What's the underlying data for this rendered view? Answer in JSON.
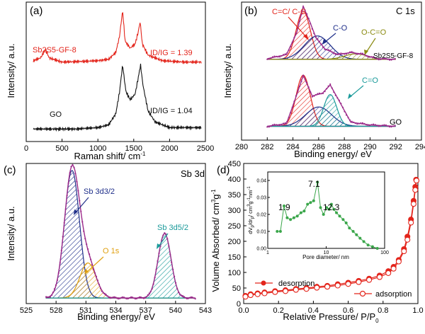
{
  "chart_data": [
    {
      "panel": "(a)",
      "type": "line",
      "xlabel": "Raman shift/ cm",
      "xlabel_sup": "-1",
      "ylabel": "Intensity/ a.u.",
      "xlim": [
        0,
        2500
      ],
      "xticks": [
        "0",
        "500",
        "1000",
        "1500",
        "2000",
        "2500"
      ],
      "series": [
        {
          "name": "Sb2S5-GF-8",
          "color": "#e3241b",
          "ratio": "ID/IG = 1.39",
          "points": [
            [
              100,
              0.58
            ],
            [
              200,
              0.6
            ],
            [
              270,
              0.66
            ],
            [
              320,
              0.6
            ],
            [
              500,
              0.57
            ],
            [
              800,
              0.575
            ],
            [
              1000,
              0.58
            ],
            [
              1150,
              0.59
            ],
            [
              1250,
              0.64
            ],
            [
              1300,
              0.75
            ],
            [
              1345,
              0.94
            ],
            [
              1380,
              0.72
            ],
            [
              1450,
              0.67
            ],
            [
              1520,
              0.7
            ],
            [
              1560,
              0.78
            ],
            [
              1590,
              0.86
            ],
            [
              1620,
              0.7
            ],
            [
              1700,
              0.62
            ],
            [
              1900,
              0.58
            ],
            [
              2200,
              0.57
            ],
            [
              2450,
              0.57
            ]
          ]
        },
        {
          "name": "GO",
          "color": "#111111",
          "ratio": "ID/IG = 1.04",
          "points": [
            [
              100,
              0.09
            ],
            [
              400,
              0.09
            ],
            [
              700,
              0.09
            ],
            [
              1000,
              0.1
            ],
            [
              1150,
              0.12
            ],
            [
              1250,
              0.2
            ],
            [
              1300,
              0.35
            ],
            [
              1345,
              0.55
            ],
            [
              1390,
              0.36
            ],
            [
              1450,
              0.3
            ],
            [
              1520,
              0.34
            ],
            [
              1560,
              0.45
            ],
            [
              1595,
              0.55
            ],
            [
              1630,
              0.4
            ],
            [
              1700,
              0.22
            ],
            [
              1800,
              0.14
            ],
            [
              2000,
              0.1
            ],
            [
              2450,
              0.1
            ]
          ]
        }
      ]
    },
    {
      "panel": "(b)",
      "type": "line",
      "title": "C 1s",
      "xlabel": "Binding energy/ eV",
      "ylabel": "Intensity/ a.u.",
      "xlim": [
        280,
        294
      ],
      "xticks": [
        "280",
        "282",
        "284",
        "286",
        "288",
        "290",
        "292",
        "294"
      ],
      "labels": {
        "cc": "C=C/ C-C",
        "co": "C-O",
        "oco": "O-C=O",
        "s1": "Sb2S5-GF-8",
        "ceo": "C=O",
        "s2": "GO"
      },
      "top": {
        "envelope": [
          [
            282,
            0.59
          ],
          [
            283.5,
            0.62
          ],
          [
            284.3,
            0.78
          ],
          [
            284.8,
            0.97
          ],
          [
            285.3,
            0.86
          ],
          [
            285.8,
            0.74
          ],
          [
            286.5,
            0.66
          ],
          [
            287.5,
            0.62
          ],
          [
            288.5,
            0.635
          ],
          [
            289.3,
            0.625
          ],
          [
            290.5,
            0.59
          ],
          [
            292,
            0.585
          ]
        ],
        "components": [
          {
            "center": 284.8,
            "height": 0.35,
            "width": 0.55,
            "color": "#e3241b"
          },
          {
            "center": 285.9,
            "height": 0.17,
            "width": 1.0,
            "color": "#1f2f8a"
          },
          {
            "center": 288.9,
            "height": 0.04,
            "width": 0.9,
            "color": "#8a8a10"
          }
        ],
        "baseline": 0.585
      },
      "bottom": {
        "envelope": [
          [
            282,
            0.1
          ],
          [
            283.5,
            0.12
          ],
          [
            284.3,
            0.33
          ],
          [
            284.8,
            0.47
          ],
          [
            285.5,
            0.32
          ],
          [
            286.3,
            0.34
          ],
          [
            286.9,
            0.4
          ],
          [
            287.5,
            0.3
          ],
          [
            288.5,
            0.13
          ],
          [
            290,
            0.11
          ],
          [
            292,
            0.1
          ]
        ],
        "components": [
          {
            "center": 284.8,
            "height": 0.37,
            "width": 0.55,
            "color": "#e3241b"
          },
          {
            "center": 286.0,
            "height": 0.14,
            "width": 1.0,
            "color": "#1f2f8a"
          },
          {
            "center": 286.9,
            "height": 0.23,
            "width": 0.5,
            "color": "#1a9a9a"
          }
        ],
        "baseline": 0.1
      }
    },
    {
      "panel": "(c)",
      "type": "line",
      "title": "Sb 3d",
      "xlabel": "Binding energy/ eV",
      "ylabel": "Intensity/ a.u.",
      "xlim": [
        525,
        543
      ],
      "xticks": [
        "525",
        "528",
        "531",
        "534",
        "537",
        "540",
        "543"
      ],
      "labels": {
        "a": "Sb 3d3/2",
        "b": "O 1s",
        "c": "Sb 3d5/2"
      },
      "components": [
        {
          "center": 529.6,
          "height": 0.91,
          "width": 0.75,
          "color": "#1f2f8a"
        },
        {
          "center": 531.2,
          "height": 0.25,
          "width": 0.8,
          "color": "#e0a010"
        },
        {
          "center": 538.9,
          "height": 0.46,
          "width": 0.65,
          "color": "#1a9a9a"
        }
      ],
      "baseline": 0.04
    },
    {
      "panel": "(d)",
      "type": "scatter",
      "xlabel": "Relative Pressure/ P/P",
      "xlabel_sub": "0",
      "ylabel": "Volume Absorbed/ cm",
      "ylabel_sup": "3",
      "ylabel_tail": "g",
      "ylabel_sup2": "-1",
      "xlim": [
        0.0,
        1.0
      ],
      "ylim": [
        0,
        450
      ],
      "xticks": [
        "0.0",
        "0.2",
        "0.4",
        "0.6",
        "0.8",
        "1.0"
      ],
      "yticks": [
        "0",
        "50",
        "100",
        "150",
        "200",
        "250",
        "300",
        "350",
        "400",
        "450"
      ],
      "series": [
        {
          "name": "desorption",
          "color": "#e3241b",
          "filled": true,
          "points": [
            [
              0.01,
              25
            ],
            [
              0.04,
              30
            ],
            [
              0.08,
              33
            ],
            [
              0.12,
              36
            ],
            [
              0.18,
              40
            ],
            [
              0.24,
              43
            ],
            [
              0.3,
              47
            ],
            [
              0.36,
              50
            ],
            [
              0.42,
              54
            ],
            [
              0.48,
              57
            ],
            [
              0.54,
              62
            ],
            [
              0.6,
              67
            ],
            [
              0.66,
              73
            ],
            [
              0.72,
              80
            ],
            [
              0.78,
              90
            ],
            [
              0.83,
              104
            ],
            [
              0.86,
              118
            ],
            [
              0.89,
              140
            ],
            [
              0.92,
              175
            ],
            [
              0.94,
              215
            ],
            [
              0.96,
              270
            ],
            [
              0.975,
              330
            ],
            [
              0.985,
              375
            ],
            [
              0.99,
              398
            ]
          ]
        },
        {
          "name": "adsorption",
          "color": "#e3241b",
          "filled": false,
          "points": [
            [
              0.01,
              22
            ],
            [
              0.04,
              27
            ],
            [
              0.08,
              30
            ],
            [
              0.12,
              33
            ],
            [
              0.18,
              37
            ],
            [
              0.24,
              40
            ],
            [
              0.3,
              44
            ],
            [
              0.36,
              47
            ],
            [
              0.42,
              51
            ],
            [
              0.48,
              54
            ],
            [
              0.54,
              58
            ],
            [
              0.6,
              63
            ],
            [
              0.66,
              69
            ],
            [
              0.72,
              76
            ],
            [
              0.78,
              85
            ],
            [
              0.83,
              98
            ],
            [
              0.86,
              112
            ],
            [
              0.89,
              135
            ],
            [
              0.92,
              168
            ],
            [
              0.94,
              205
            ],
            [
              0.96,
              260
            ],
            [
              0.975,
              320
            ],
            [
              0.985,
              365
            ],
            [
              0.992,
              395
            ]
          ]
        }
      ],
      "inset": {
        "xlabel": "Pore diameter/ nm",
        "ylabel": "dV",
        "ylabel_sub": "p",
        "ylabel_mid": "/dr",
        "ylabel_sub2": "p",
        "ylabel_tail": "/ cm",
        "ylabel_sup": "3",
        "ylabel_tail2": "g",
        "ylabel_sup2": "-1",
        "ylabel_tail3": "nm",
        "ylabel_sup3": "-1",
        "xlim_log": [
          1,
          100
        ],
        "ylim": [
          0,
          0.045
        ],
        "xticks": [
          "1",
          "10",
          "100"
        ],
        "yticks": [
          "0.00",
          "0.01",
          "0.02",
          "0.03",
          "0.04"
        ],
        "annotations": [
          "1.9",
          "7.1",
          "12.3"
        ],
        "color": "#3aa64a",
        "points": [
          [
            1.45,
            0.01
          ],
          [
            1.65,
            0.01
          ],
          [
            1.9,
            0.025
          ],
          [
            2.15,
            0.018
          ],
          [
            2.45,
            0.017
          ],
          [
            2.8,
            0.018
          ],
          [
            3.2,
            0.019
          ],
          [
            3.7,
            0.021
          ],
          [
            4.2,
            0.022
          ],
          [
            4.8,
            0.026
          ],
          [
            5.4,
            0.027
          ],
          [
            6.1,
            0.028
          ],
          [
            7.1,
            0.039
          ],
          [
            8.0,
            0.024
          ],
          [
            9.0,
            0.02
          ],
          [
            10.2,
            0.024
          ],
          [
            11.2,
            0.023
          ],
          [
            12.3,
            0.026
          ],
          [
            13.5,
            0.023
          ],
          [
            15,
            0.021
          ],
          [
            17,
            0.019
          ],
          [
            19.5,
            0.017
          ],
          [
            22,
            0.015
          ],
          [
            25,
            0.012
          ],
          [
            29,
            0.01
          ],
          [
            33,
            0.008
          ],
          [
            38,
            0.006
          ],
          [
            44,
            0.004
          ],
          [
            52,
            0.002
          ],
          [
            62,
            0.001
          ],
          [
            75,
            0.0
          ]
        ]
      }
    }
  ]
}
